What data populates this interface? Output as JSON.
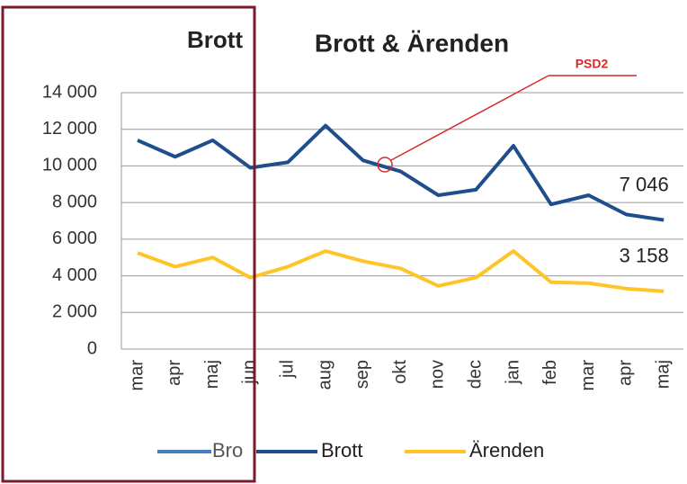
{
  "chart_data": {
    "type": "line",
    "title": "Brott & Ärenden",
    "categories": [
      "mar",
      "apr",
      "maj",
      "jun",
      "jul",
      "aug",
      "sep",
      "okt",
      "nov",
      "dec",
      "jan",
      "feb",
      "mar",
      "apr",
      "maj"
    ],
    "series": [
      {
        "name": "Brott",
        "color": "#1f4e8c",
        "values": [
          11400,
          10500,
          11400,
          9900,
          10200,
          12200,
          10300,
          9700,
          8400,
          8700,
          11100,
          7900,
          8400,
          7350,
          7046
        ],
        "value_labels": [
          null,
          null,
          null,
          null,
          null,
          null,
          null,
          null,
          null,
          null,
          null,
          null,
          null,
          null,
          "7 046"
        ]
      },
      {
        "name": "Ärenden",
        "color": "#ffc425",
        "values": [
          5250,
          4500,
          5000,
          3900,
          4500,
          5350,
          4800,
          4400,
          3450,
          3900,
          5350,
          3650,
          3600,
          3300,
          3158
        ],
        "value_labels": [
          null,
          null,
          null,
          null,
          null,
          null,
          null,
          null,
          null,
          null,
          null,
          null,
          null,
          null,
          "3 158"
        ]
      }
    ],
    "ylim": [
      0,
      14000
    ],
    "yticks": [
      0,
      {
        "value": 2000,
        "label": "2 000"
      },
      {
        "value": 4000,
        "label": "4 000"
      },
      {
        "value": 6000,
        "label": "6 000"
      },
      {
        "value": 8000,
        "label": "8 000"
      },
      {
        "value": 10000,
        "label": "10 000"
      },
      {
        "value": 12000,
        "label": "12 000"
      },
      {
        "value": 14000,
        "label": "14 000"
      }
    ],
    "grid": true,
    "legend": "bottom",
    "annotation": "PSD2"
  },
  "overlay": {
    "title_fragment": "Brott",
    "legend_fragment": "Bro"
  }
}
